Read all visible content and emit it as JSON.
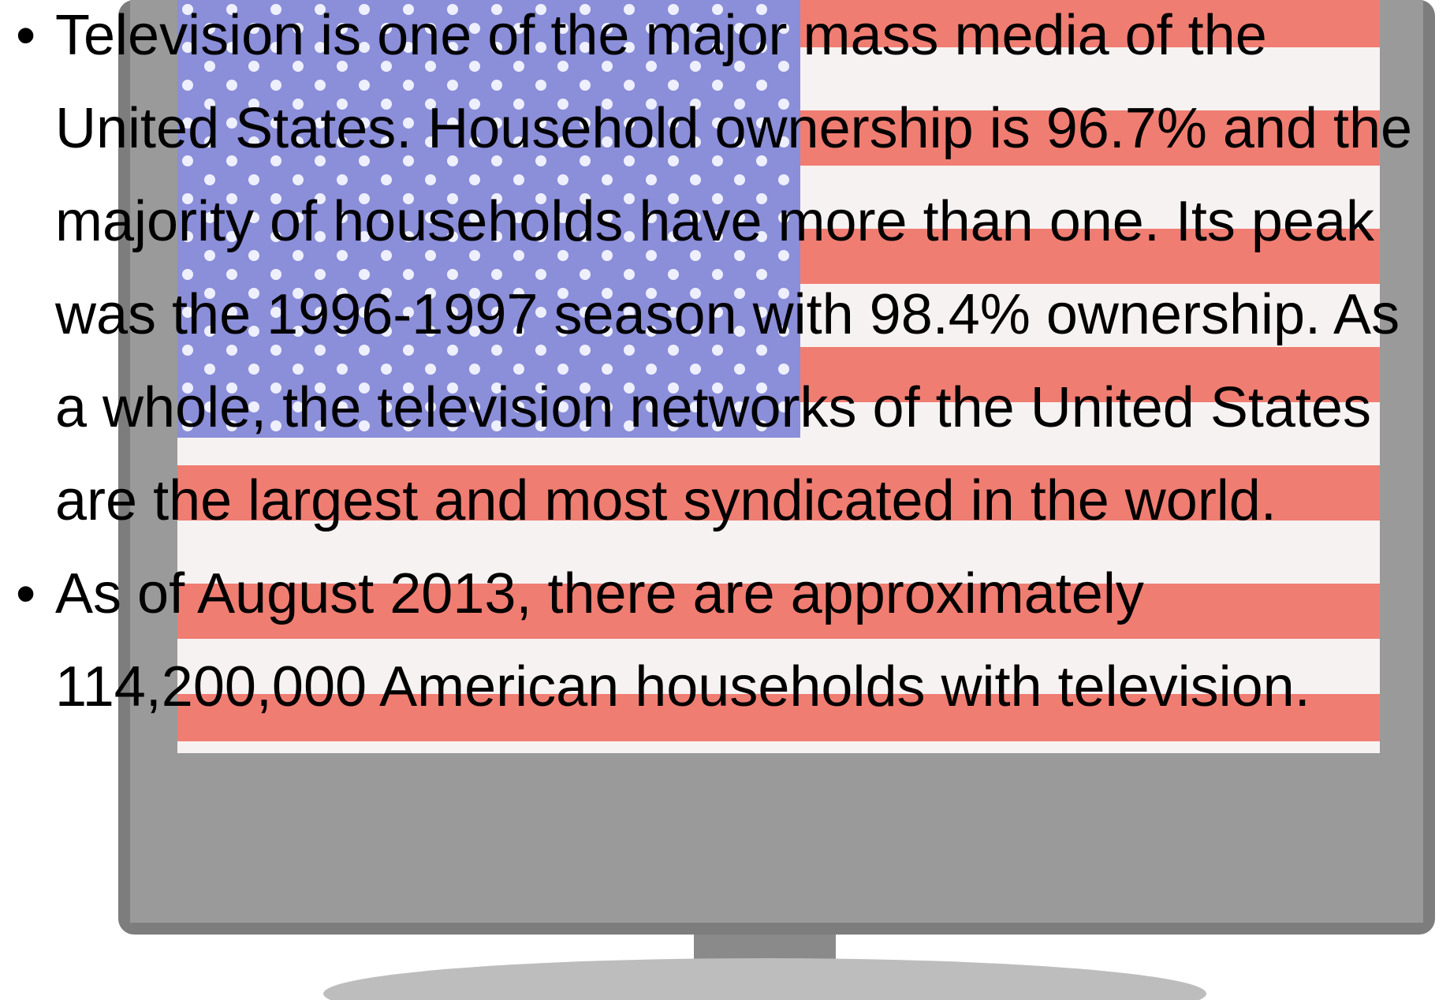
{
  "bullets": [
    "Television is one of the major mass media of the United States. Household ownership is 96.7% and the majority of households have more than one. Its peak was the 1996-1997 season with 98.4% ownership. As a whole, the television networks of the United States are the largest and most syndicated in the world.",
    "As of August 2013, there are approximately 114,200,000 American households with television."
  ]
}
